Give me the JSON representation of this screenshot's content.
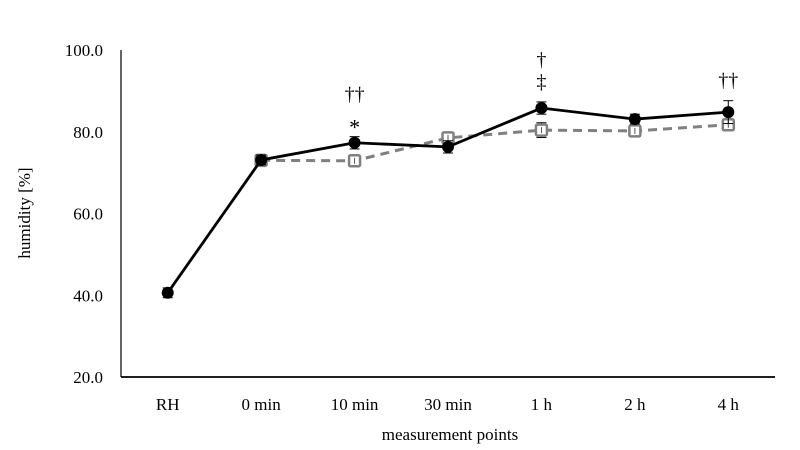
{
  "chart_data": {
    "type": "line",
    "title": "",
    "xlabel": "measurement points",
    "ylabel": "humidity [%]",
    "ylim": [
      20,
      100
    ],
    "yticks": [
      "20.0",
      "40.0",
      "60.0",
      "80.0",
      "100.0"
    ],
    "ytick_values": [
      20,
      40,
      60,
      80,
      100
    ],
    "grid": false,
    "legend": "none",
    "categories": [
      "RH",
      "0 min",
      "10 min",
      "30 min",
      "1 h",
      "2 h",
      "4 h"
    ],
    "series": [
      {
        "name": "series-solid",
        "style": "solid",
        "marker": "circle",
        "color": "#000000",
        "values": [
          40.6,
          73.1,
          77.3,
          76.3,
          85.8,
          83.1,
          84.8
        ],
        "errors": [
          1.2,
          1.2,
          1.5,
          1.5,
          1.5,
          1.2,
          2.8
        ]
      },
      {
        "name": "series-dashed",
        "style": "dashed",
        "marker": "square",
        "color": "#808080",
        "values": [
          null,
          73.0,
          72.9,
          78.5,
          80.4,
          80.2,
          81.7
        ],
        "errors": [
          null,
          1.0,
          1.0,
          1.0,
          1.8,
          1.2,
          1.0
        ]
      }
    ],
    "annotations": [
      {
        "category": "10 min",
        "text": "*"
      },
      {
        "category": "10 min",
        "text": "††"
      },
      {
        "category": "1 h",
        "text": "‡"
      },
      {
        "category": "1 h",
        "text": "†"
      },
      {
        "category": "4 h",
        "text": "††"
      }
    ]
  }
}
